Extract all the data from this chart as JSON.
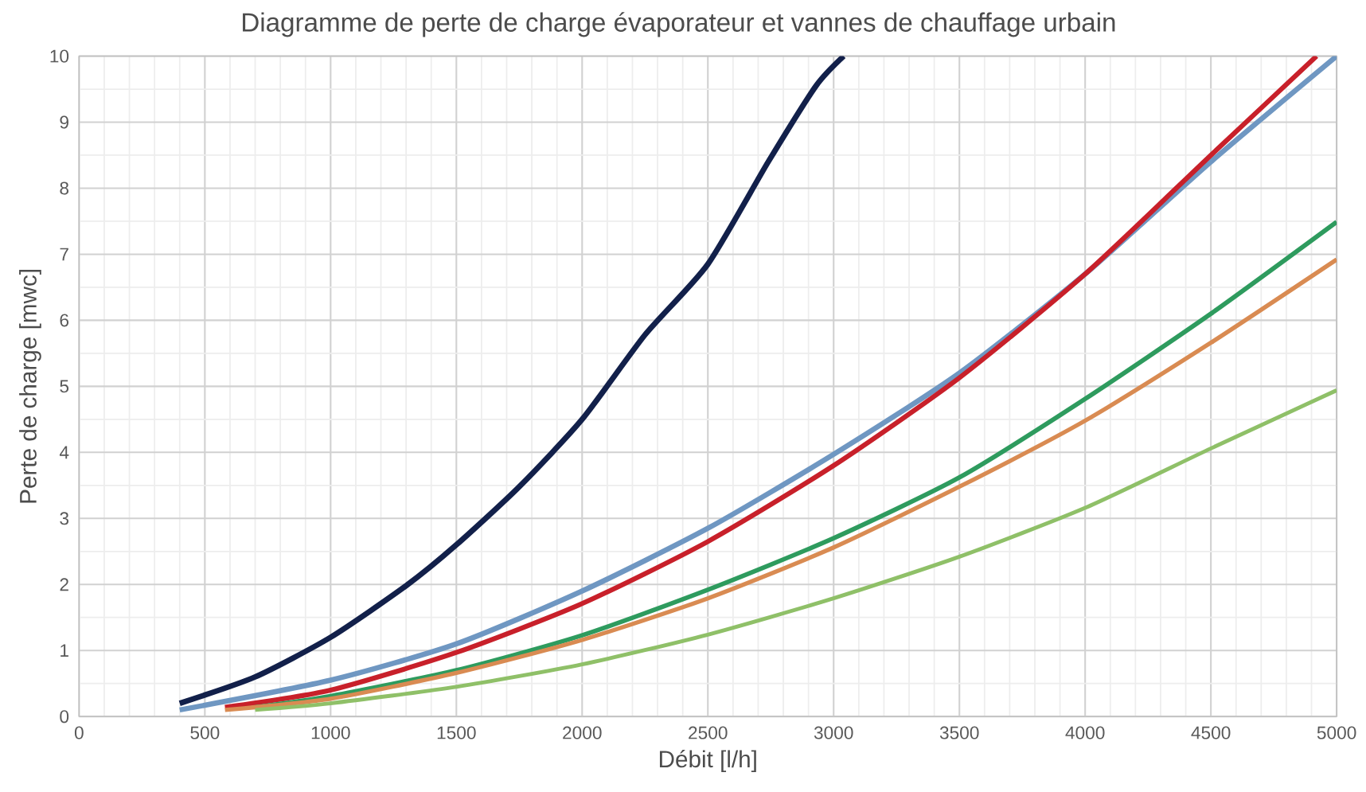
{
  "chart_data": {
    "type": "line",
    "title": "Diagramme de perte de charge évaporateur et vannes de chauffage urbain",
    "xlabel": "Débit [l/h]",
    "ylabel": "Perte de charge [mwc]",
    "xlim": [
      0,
      5000
    ],
    "ylim": [
      0,
      10
    ],
    "xticks": [
      0,
      500,
      1000,
      1500,
      2000,
      2500,
      3000,
      3500,
      4000,
      4500,
      5000
    ],
    "yticks": [
      0,
      1,
      2,
      3,
      4,
      5,
      6,
      7,
      8,
      9,
      10
    ],
    "grid": true,
    "series": [
      {
        "color": "#12204a",
        "x": [
          400,
          700,
          1000,
          1300,
          1500,
          1750,
          2000,
          2250,
          2500,
          2740,
          2930,
          3040
        ],
        "values": [
          0.2,
          0.6,
          1.2,
          1.98,
          2.6,
          3.48,
          4.5,
          5.78,
          6.85,
          8.4,
          9.55,
          10
        ]
      },
      {
        "color": "#6f97c2",
        "x": [
          400,
          1000,
          1500,
          2000,
          2500,
          3000,
          3500,
          4000,
          4500,
          5000
        ],
        "values": [
          0.1,
          0.55,
          1.1,
          1.9,
          2.85,
          3.97,
          5.2,
          6.7,
          8.4,
          10
        ]
      },
      {
        "color": "#c8202a",
        "x": [
          580,
          1000,
          1500,
          2000,
          2500,
          3000,
          3500,
          4000,
          4500,
          4920
        ],
        "values": [
          0.14,
          0.4,
          0.97,
          1.71,
          2.65,
          3.8,
          5.13,
          6.7,
          8.5,
          10
        ]
      },
      {
        "color": "#2e9b5e",
        "x": [
          700,
          1000,
          1500,
          2000,
          2500,
          3000,
          3500,
          4000,
          4500,
          5000
        ],
        "values": [
          0.14,
          0.31,
          0.7,
          1.23,
          1.92,
          2.7,
          3.62,
          4.81,
          6.1,
          7.49
        ]
      },
      {
        "color": "#d98b52",
        "x": [
          580,
          1000,
          1500,
          2000,
          2500,
          3000,
          3500,
          4000,
          4500,
          5000
        ],
        "values": [
          0.1,
          0.27,
          0.66,
          1.16,
          1.79,
          2.56,
          3.48,
          4.48,
          5.66,
          6.92
        ]
      },
      {
        "color": "#8fc068",
        "x": [
          700,
          1000,
          1500,
          2000,
          2500,
          3000,
          3500,
          4000,
          4500,
          5000
        ],
        "values": [
          0.1,
          0.2,
          0.45,
          0.79,
          1.24,
          1.79,
          2.42,
          3.16,
          4.06,
          4.94
        ]
      }
    ]
  }
}
